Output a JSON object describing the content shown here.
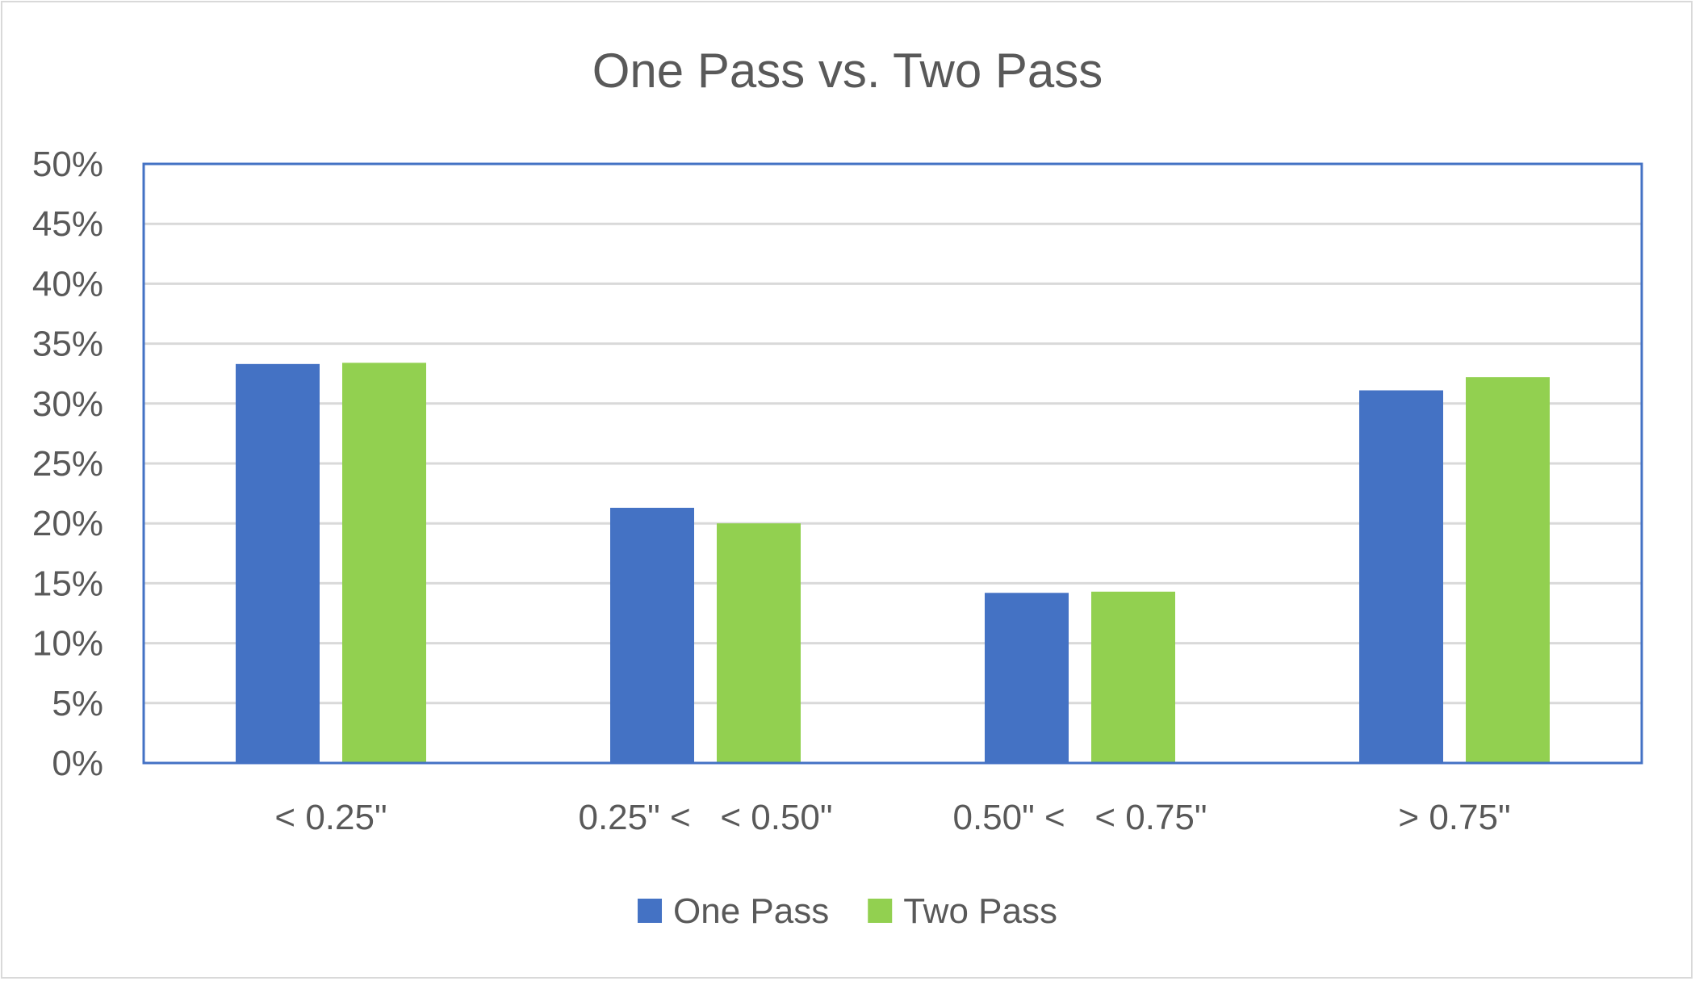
{
  "chart_data": {
    "type": "bar",
    "title": "One Pass vs. Two Pass",
    "xlabel": "",
    "ylabel": "",
    "categories": [
      "< 0.25\"",
      "0.25\" <   < 0.50\"",
      "0.50\" <   < 0.75\"",
      "> 0.75\""
    ],
    "series": [
      {
        "name": "One Pass",
        "color": "#4472c4",
        "values": [
          33.3,
          21.3,
          14.2,
          31.1
        ]
      },
      {
        "name": "Two Pass",
        "color": "#92d050",
        "values": [
          33.4,
          20.0,
          14.3,
          32.2
        ]
      }
    ],
    "ylim": [
      0,
      50
    ],
    "yticks": [
      "0%",
      "5%",
      "10%",
      "15%",
      "20%",
      "25%",
      "30%",
      "35%",
      "40%",
      "45%",
      "50%"
    ],
    "grid": true,
    "legend": "bottom",
    "colors": {
      "gridline": "#d9d9d9",
      "plot_border": "#4472c4",
      "text": "#595959"
    }
  }
}
